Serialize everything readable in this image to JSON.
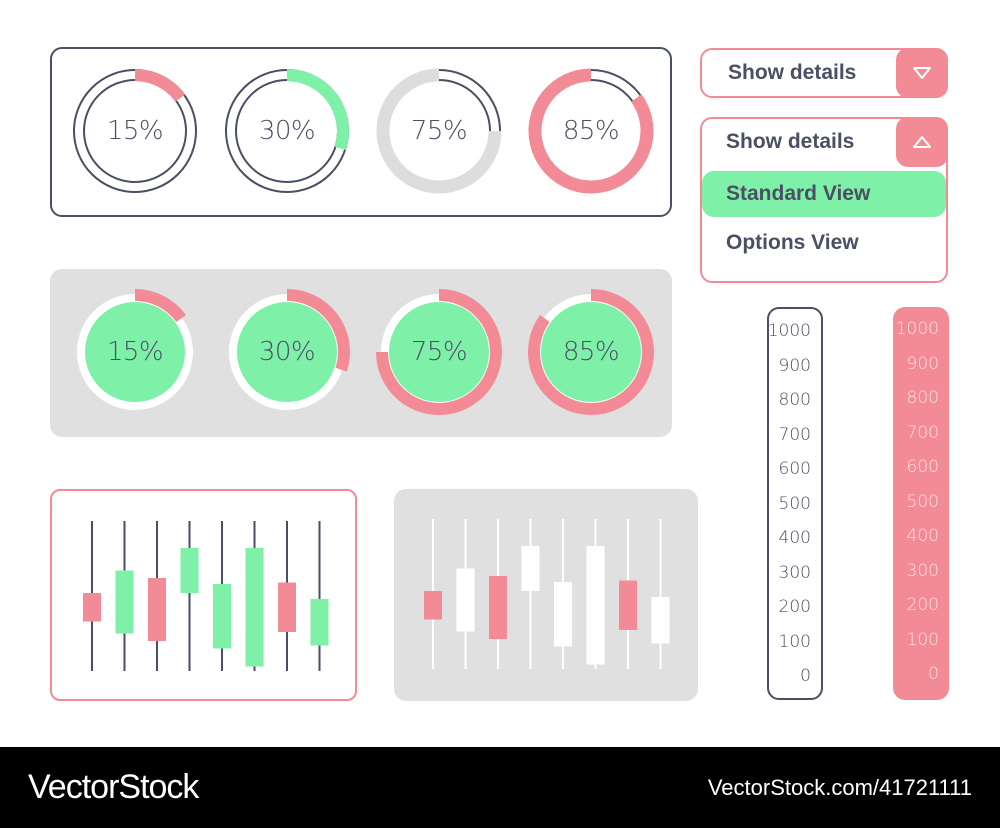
{
  "colors": {
    "pink": "#f28b95",
    "green": "#7ef0a8",
    "dark": "#4a4f63",
    "gray": "#e0e0e0",
    "light_track": "#dddddd",
    "white": "#ffffff"
  },
  "ring_row_outline": {
    "items": [
      {
        "label": "15%",
        "percent": 15,
        "arc_color": "#f28b95",
        "style": "double-outline"
      },
      {
        "label": "30%",
        "percent": 30,
        "arc_color": "#7ef0a8",
        "style": "double-outline"
      },
      {
        "label": "75%",
        "percent": 75,
        "arc_color": "#dddddd",
        "style": "gray-arc"
      },
      {
        "label": "85%",
        "percent": 85,
        "arc_color": "#f28b95",
        "style": "pink-arc"
      }
    ]
  },
  "ring_row_filled": {
    "items": [
      {
        "label": "15%",
        "percent": 15
      },
      {
        "label": "30%",
        "percent": 30
      },
      {
        "label": "75%",
        "percent": 75
      },
      {
        "label": "85%",
        "percent": 85
      }
    ]
  },
  "dropdown_closed": {
    "label": "Show details",
    "icon": "triangle-down-icon"
  },
  "dropdown_open": {
    "label": "Show details",
    "icon": "triangle-up-icon",
    "options": [
      {
        "label": "Standard View",
        "selected": true
      },
      {
        "label": "Options View",
        "selected": false
      }
    ]
  },
  "scales": {
    "ticks": [
      "1000",
      "900",
      "800",
      "700",
      "600",
      "500",
      "400",
      "300",
      "200",
      "100",
      "0"
    ]
  },
  "candles_outline": [
    {
      "color": "pink",
      "open": 0.33,
      "close": 0.52
    },
    {
      "color": "green",
      "open": 0.67,
      "close": 0.25
    },
    {
      "color": "pink",
      "open": 0.2,
      "close": 0.62
    },
    {
      "color": "green",
      "open": 0.82,
      "close": 0.52
    },
    {
      "color": "green",
      "open": 0.58,
      "close": 0.15
    },
    {
      "color": "green",
      "open": 0.82,
      "close": 0.03
    },
    {
      "color": "pink",
      "open": 0.26,
      "close": 0.59
    },
    {
      "color": "green",
      "open": 0.48,
      "close": 0.17
    }
  ],
  "candles_gray": [
    {
      "color": "pink",
      "open": 0.33,
      "close": 0.52
    },
    {
      "color": "white",
      "open": 0.67,
      "close": 0.25
    },
    {
      "color": "pink",
      "open": 0.2,
      "close": 0.62
    },
    {
      "color": "white",
      "open": 0.82,
      "close": 0.52
    },
    {
      "color": "white",
      "open": 0.58,
      "close": 0.15
    },
    {
      "color": "white",
      "open": 0.82,
      "close": 0.03
    },
    {
      "color": "pink",
      "open": 0.26,
      "close": 0.59
    },
    {
      "color": "white",
      "open": 0.48,
      "close": 0.17
    }
  ],
  "footer": {
    "brand": "VectorStock",
    "id": "VectorStock.com/41721111"
  }
}
